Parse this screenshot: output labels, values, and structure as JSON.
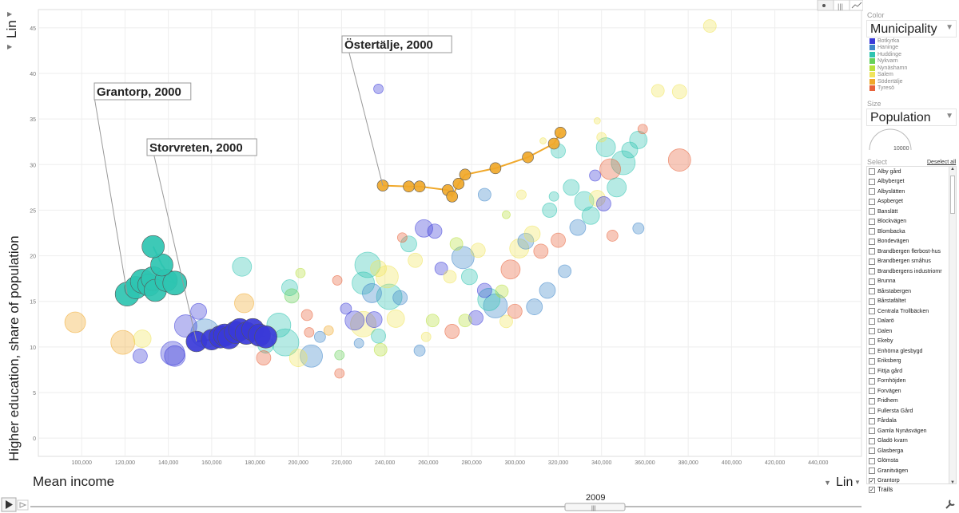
{
  "axes": {
    "y_title": "Higher education, share of population",
    "y_scale_label": "Lin",
    "x_title": "Mean income",
    "x_scale_label": "Lin"
  },
  "year": "2009",
  "sidebar": {
    "color_label": "Color",
    "color_value": "Municipality",
    "size_label": "Size",
    "size_value": "Population",
    "size_scale_value": "10000",
    "select_label": "Select",
    "deselect_all": "Deselect all",
    "trails_label": "Trails",
    "trails_checked": true,
    "items": [
      {
        "label": "Alby gård",
        "checked": false
      },
      {
        "label": "Albyberget",
        "checked": false
      },
      {
        "label": "Albyslätten",
        "checked": false
      },
      {
        "label": "Aspberget",
        "checked": false
      },
      {
        "label": "Banslätt",
        "checked": false
      },
      {
        "label": "Blockvägen",
        "checked": false
      },
      {
        "label": "Blombacka",
        "checked": false
      },
      {
        "label": "Bondevägen",
        "checked": false
      },
      {
        "label": "Brandbergen flerbost-hus",
        "checked": false
      },
      {
        "label": "Brandbergen småhus",
        "checked": false
      },
      {
        "label": "Brandbergens industriomr",
        "checked": false
      },
      {
        "label": "Brunna",
        "checked": false
      },
      {
        "label": "Bårstabergen",
        "checked": false
      },
      {
        "label": "Bårstafältet",
        "checked": false
      },
      {
        "label": "Centrala Trollbäcken",
        "checked": false
      },
      {
        "label": "Dalarö",
        "checked": false
      },
      {
        "label": "Dalen",
        "checked": false
      },
      {
        "label": "Ekeby",
        "checked": false
      },
      {
        "label": "Enhörna glesbygd",
        "checked": false
      },
      {
        "label": "Eriksberg",
        "checked": false
      },
      {
        "label": "Fittja gård",
        "checked": false
      },
      {
        "label": "Fornhöjden",
        "checked": false
      },
      {
        "label": "Forvägen",
        "checked": false
      },
      {
        "label": "Fridhem",
        "checked": false
      },
      {
        "label": "Fullersta Gård",
        "checked": false
      },
      {
        "label": "Fårdala",
        "checked": false
      },
      {
        "label": "Gamla Nynäsvägen",
        "checked": false
      },
      {
        "label": "Gladö kvarn",
        "checked": false
      },
      {
        "label": "Glasberga",
        "checked": false
      },
      {
        "label": "Glömsta",
        "checked": false
      },
      {
        "label": "Granitvägen",
        "checked": false
      },
      {
        "label": "Grantorp",
        "checked": true
      }
    ]
  },
  "colors": {
    "Botkyrka": "#3a3ad8",
    "Haninge": "#3d86c9",
    "Huddinge": "#2ec4b1",
    "Nykvarn": "#66d15a",
    "Nynäshamn": "#b8e03c",
    "Salem": "#f0e45c",
    "Södertälje": "#f0a82a",
    "Tyresö": "#e8623a"
  },
  "chart_data": {
    "type": "scatter",
    "xlabel": "Mean income",
    "ylabel": "Higher education, share of population",
    "xlim": [
      80000,
      460000
    ],
    "ylim": [
      -2,
      47
    ],
    "xticks": [
      100000,
      120000,
      140000,
      160000,
      180000,
      200000,
      220000,
      240000,
      260000,
      280000,
      300000,
      320000,
      340000,
      360000,
      380000,
      400000,
      420000,
      440000
    ],
    "xtick_labels": [
      "100,000",
      "120,000",
      "140,000",
      "160,000",
      "180,000",
      "200,000",
      "220,000",
      "240,000",
      "260,000",
      "280,000",
      "300,000",
      "320,000",
      "340,000",
      "360,000",
      "380,000",
      "400,000",
      "420,000",
      "440,000"
    ],
    "yticks": [
      0,
      5,
      10,
      15,
      20,
      25,
      30,
      35,
      40,
      45
    ],
    "year": 2009,
    "legend": [
      "Botkyrka",
      "Haninge",
      "Huddinge",
      "Nykvarn",
      "Nynäshamn",
      "Salem",
      "Södertälje",
      "Tyresö"
    ],
    "annotations": [
      {
        "label": "Grantorp, 2000",
        "x": 121000,
        "y": 15.8
      },
      {
        "label": "Storvreten, 2000",
        "x": 153000,
        "y": 10.6
      },
      {
        "label": "Östertälje, 2000",
        "x": 239000,
        "y": 27.7
      }
    ],
    "trails": [
      {
        "name": "Grantorp",
        "municipality": "Huddinge",
        "points": [
          [
            121000,
            15.8
          ],
          [
            125000,
            16.5
          ],
          [
            128000,
            17.2
          ],
          [
            131000,
            16.8
          ],
          [
            133000,
            17.5
          ],
          [
            134000,
            16.2
          ],
          [
            139000,
            17.3
          ],
          [
            143000,
            17.0
          ],
          [
            137000,
            19.0
          ],
          [
            133000,
            21.0
          ]
        ],
        "sizes": [
          15,
          14,
          15,
          14,
          15,
          14,
          14,
          15,
          14,
          14
        ]
      },
      {
        "name": "Storvreten",
        "municipality": "Botkyrka",
        "points": [
          [
            153000,
            10.6
          ],
          [
            160000,
            10.8
          ],
          [
            164000,
            11.1
          ],
          [
            166000,
            11.3
          ],
          [
            168000,
            11.0
          ],
          [
            171000,
            11.6
          ],
          [
            173000,
            11.9
          ],
          [
            176000,
            11.5
          ],
          [
            179000,
            11.9
          ],
          [
            182000,
            11.3
          ],
          [
            185000,
            11.1
          ]
        ],
        "sizes": [
          13,
          13,
          14,
          14,
          14,
          14,
          14,
          14,
          14,
          14,
          14
        ]
      },
      {
        "name": "Östertälje",
        "municipality": "Södertälje",
        "points": [
          [
            239000,
            27.7
          ],
          [
            251000,
            27.6
          ],
          [
            256000,
            27.6
          ],
          [
            269000,
            27.2
          ],
          [
            271000,
            26.5
          ],
          [
            274000,
            27.9
          ],
          [
            277000,
            28.9
          ],
          [
            291000,
            29.6
          ],
          [
            306000,
            30.8
          ],
          [
            318000,
            32.3
          ],
          [
            321000,
            33.5
          ]
        ],
        "sizes": [
          7,
          7,
          7,
          7,
          7,
          7,
          7,
          7,
          7,
          7,
          7
        ]
      }
    ],
    "bubbles": [
      {
        "x": 97000,
        "y": 12.7,
        "m": "Södertälje",
        "s": 13
      },
      {
        "x": 119000,
        "y": 10.5,
        "m": "Södertälje",
        "s": 15
      },
      {
        "x": 128000,
        "y": 10.9,
        "m": "Salem",
        "s": 11
      },
      {
        "x": 127000,
        "y": 9.0,
        "m": "Botkyrka",
        "s": 9
      },
      {
        "x": 142000,
        "y": 9.3,
        "m": "Botkyrka",
        "s": 15
      },
      {
        "x": 143000,
        "y": 9.0,
        "m": "Botkyrka",
        "s": 13
      },
      {
        "x": 148000,
        "y": 12.3,
        "m": "Botkyrka",
        "s": 14
      },
      {
        "x": 154000,
        "y": 13.9,
        "m": "Botkyrka",
        "s": 10
      },
      {
        "x": 157000,
        "y": 11.5,
        "m": "Haninge",
        "s": 18
      },
      {
        "x": 174000,
        "y": 18.8,
        "m": "Huddinge",
        "s": 12
      },
      {
        "x": 175000,
        "y": 14.8,
        "m": "Södertälje",
        "s": 12
      },
      {
        "x": 185000,
        "y": 10.2,
        "m": "Huddinge",
        "s": 10
      },
      {
        "x": 191000,
        "y": 12.4,
        "m": "Huddinge",
        "s": 15
      },
      {
        "x": 194000,
        "y": 10.5,
        "m": "Huddinge",
        "s": 17
      },
      {
        "x": 196000,
        "y": 16.5,
        "m": "Huddinge",
        "s": 10
      },
      {
        "x": 197000,
        "y": 15.6,
        "m": "Nykvarn",
        "s": 9
      },
      {
        "x": 184000,
        "y": 8.8,
        "m": "Tyresö",
        "s": 9
      },
      {
        "x": 206000,
        "y": 9.0,
        "m": "Haninge",
        "s": 14
      },
      {
        "x": 210000,
        "y": 11.1,
        "m": "Haninge",
        "s": 7
      },
      {
        "x": 214000,
        "y": 11.8,
        "m": "Södertälje",
        "s": 6
      },
      {
        "x": 219000,
        "y": 7.1,
        "m": "Tyresö",
        "s": 6
      },
      {
        "x": 222000,
        "y": 14.2,
        "m": "Botkyrka",
        "s": 7
      },
      {
        "x": 226000,
        "y": 12.9,
        "m": "Botkyrka",
        "s": 12
      },
      {
        "x": 230000,
        "y": 17.0,
        "m": "Huddinge",
        "s": 14
      },
      {
        "x": 232000,
        "y": 19.0,
        "m": "Huddinge",
        "s": 16
      },
      {
        "x": 234000,
        "y": 15.9,
        "m": "Haninge",
        "s": 12
      },
      {
        "x": 237000,
        "y": 18.6,
        "m": "Salem",
        "s": 10
      },
      {
        "x": 241000,
        "y": 17.7,
        "m": "Salem",
        "s": 14
      },
      {
        "x": 245000,
        "y": 13.1,
        "m": "Salem",
        "s": 11
      },
      {
        "x": 247000,
        "y": 15.4,
        "m": "Haninge",
        "s": 9
      },
      {
        "x": 251000,
        "y": 21.3,
        "m": "Huddinge",
        "s": 10
      },
      {
        "x": 254000,
        "y": 19.5,
        "m": "Salem",
        "s": 9
      },
      {
        "x": 258000,
        "y": 23.0,
        "m": "Botkyrka",
        "s": 11
      },
      {
        "x": 263000,
        "y": 22.7,
        "m": "Botkyrka",
        "s": 9
      },
      {
        "x": 266000,
        "y": 18.6,
        "m": "Botkyrka",
        "s": 8
      },
      {
        "x": 270000,
        "y": 17.7,
        "m": "Salem",
        "s": 8
      },
      {
        "x": 273000,
        "y": 21.3,
        "m": "Nynäshamn",
        "s": 8
      },
      {
        "x": 276000,
        "y": 19.8,
        "m": "Haninge",
        "s": 14
      },
      {
        "x": 279000,
        "y": 17.7,
        "m": "Huddinge",
        "s": 10
      },
      {
        "x": 283000,
        "y": 20.6,
        "m": "Salem",
        "s": 9
      },
      {
        "x": 286000,
        "y": 16.2,
        "m": "Botkyrka",
        "s": 9
      },
      {
        "x": 288000,
        "y": 15.2,
        "m": "Huddinge",
        "s": 14
      },
      {
        "x": 291000,
        "y": 14.5,
        "m": "Haninge",
        "s": 15
      },
      {
        "x": 294000,
        "y": 16.1,
        "m": "Nynäshamn",
        "s": 8
      },
      {
        "x": 298000,
        "y": 18.5,
        "m": "Tyresö",
        "s": 12
      },
      {
        "x": 302000,
        "y": 20.8,
        "m": "Salem",
        "s": 12
      },
      {
        "x": 305000,
        "y": 21.6,
        "m": "Haninge",
        "s": 10
      },
      {
        "x": 308000,
        "y": 22.4,
        "m": "Salem",
        "s": 10
      },
      {
        "x": 312000,
        "y": 20.5,
        "m": "Tyresö",
        "s": 9
      },
      {
        "x": 315000,
        "y": 16.2,
        "m": "Haninge",
        "s": 10
      },
      {
        "x": 320000,
        "y": 21.7,
        "m": "Tyresö",
        "s": 9
      },
      {
        "x": 323000,
        "y": 18.3,
        "m": "Haninge",
        "s": 8
      },
      {
        "x": 326000,
        "y": 27.5,
        "m": "Huddinge",
        "s": 10
      },
      {
        "x": 329000,
        "y": 23.1,
        "m": "Haninge",
        "s": 10
      },
      {
        "x": 332000,
        "y": 26.0,
        "m": "Huddinge",
        "s": 12
      },
      {
        "x": 335000,
        "y": 24.4,
        "m": "Huddinge",
        "s": 11
      },
      {
        "x": 338000,
        "y": 26.3,
        "m": "Salem",
        "s": 10
      },
      {
        "x": 341000,
        "y": 25.7,
        "m": "Botkyrka",
        "s": 9
      },
      {
        "x": 344000,
        "y": 29.5,
        "m": "Tyresö",
        "s": 13
      },
      {
        "x": 347000,
        "y": 27.5,
        "m": "Huddinge",
        "s": 12
      },
      {
        "x": 350000,
        "y": 30.2,
        "m": "Huddinge",
        "s": 15
      },
      {
        "x": 353000,
        "y": 31.6,
        "m": "Huddinge",
        "s": 10
      },
      {
        "x": 357000,
        "y": 32.7,
        "m": "Huddinge",
        "s": 11
      },
      {
        "x": 357000,
        "y": 23.0,
        "m": "Haninge",
        "s": 7
      },
      {
        "x": 376000,
        "y": 30.5,
        "m": "Tyresö",
        "s": 14
      },
      {
        "x": 366000,
        "y": 38.1,
        "m": "Salem",
        "s": 8
      },
      {
        "x": 376000,
        "y": 38.0,
        "m": "Salem",
        "s": 9
      },
      {
        "x": 390000,
        "y": 45.2,
        "m": "Salem",
        "s": 8
      },
      {
        "x": 237000,
        "y": 38.3,
        "m": "Botkyrka",
        "s": 6
      },
      {
        "x": 242000,
        "y": 15.5,
        "m": "Huddinge",
        "s": 16
      },
      {
        "x": 235000,
        "y": 13.0,
        "m": "Botkyrka",
        "s": 10
      },
      {
        "x": 230000,
        "y": 12.5,
        "m": "Salem",
        "s": 16
      },
      {
        "x": 237000,
        "y": 11.2,
        "m": "Huddinge",
        "s": 9
      },
      {
        "x": 228000,
        "y": 10.4,
        "m": "Haninge",
        "s": 6
      },
      {
        "x": 238000,
        "y": 9.7,
        "m": "Nynäshamn",
        "s": 8
      },
      {
        "x": 219000,
        "y": 9.1,
        "m": "Nykvarn",
        "s": 6
      },
      {
        "x": 200000,
        "y": 8.8,
        "m": "Salem",
        "s": 11
      },
      {
        "x": 256000,
        "y": 9.6,
        "m": "Haninge",
        "s": 7
      },
      {
        "x": 259000,
        "y": 11.1,
        "m": "Salem",
        "s": 6
      },
      {
        "x": 262000,
        "y": 12.9,
        "m": "Nynäshamn",
        "s": 8
      },
      {
        "x": 271000,
        "y": 11.7,
        "m": "Tyresö",
        "s": 9
      },
      {
        "x": 277000,
        "y": 12.9,
        "m": "Nynäshamn",
        "s": 8
      },
      {
        "x": 282000,
        "y": 13.2,
        "m": "Botkyrka",
        "s": 9
      },
      {
        "x": 296000,
        "y": 12.8,
        "m": "Salem",
        "s": 8
      },
      {
        "x": 300000,
        "y": 13.9,
        "m": "Tyresö",
        "s": 9
      },
      {
        "x": 309000,
        "y": 14.4,
        "m": "Haninge",
        "s": 10
      },
      {
        "x": 316000,
        "y": 25.0,
        "m": "Huddinge",
        "s": 9
      },
      {
        "x": 318000,
        "y": 26.5,
        "m": "Huddinge",
        "s": 6
      },
      {
        "x": 337000,
        "y": 28.8,
        "m": "Botkyrka",
        "s": 7
      },
      {
        "x": 345000,
        "y": 22.2,
        "m": "Tyresö",
        "s": 7
      },
      {
        "x": 340000,
        "y": 33.0,
        "m": "Salem",
        "s": 6
      },
      {
        "x": 359000,
        "y": 33.9,
        "m": "Tyresö",
        "s": 6
      },
      {
        "x": 342000,
        "y": 31.9,
        "m": "Huddinge",
        "s": 12
      },
      {
        "x": 320000,
        "y": 31.5,
        "m": "Huddinge",
        "s": 9
      },
      {
        "x": 338000,
        "y": 34.8,
        "m": "Salem",
        "s": 4
      },
      {
        "x": 313000,
        "y": 32.6,
        "m": "Salem",
        "s": 4
      },
      {
        "x": 303000,
        "y": 26.7,
        "m": "Salem",
        "s": 6
      },
      {
        "x": 286000,
        "y": 26.7,
        "m": "Haninge",
        "s": 8
      },
      {
        "x": 296000,
        "y": 24.5,
        "m": "Nynäshamn",
        "s": 5
      },
      {
        "x": 248000,
        "y": 22.0,
        "m": "Tyresö",
        "s": 6
      },
      {
        "x": 218000,
        "y": 17.3,
        "m": "Tyresö",
        "s": 6
      },
      {
        "x": 204000,
        "y": 13.5,
        "m": "Tyresö",
        "s": 7
      },
      {
        "x": 205000,
        "y": 11.6,
        "m": "Tyresö",
        "s": 6
      },
      {
        "x": 201000,
        "y": 18.1,
        "m": "Nynäshamn",
        "s": 6
      }
    ]
  }
}
